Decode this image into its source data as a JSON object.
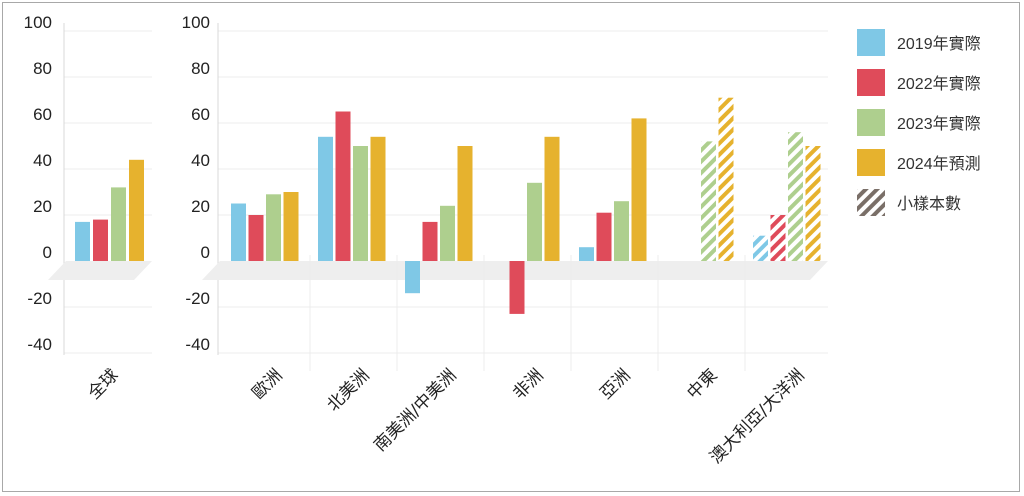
{
  "chart_data": [
    {
      "type": "bar",
      "categories": [
        "全球"
      ],
      "ylim": [
        -40,
        100
      ],
      "yticks": [
        "100",
        "80",
        "60",
        "40",
        "20",
        "0",
        "-20",
        "-40"
      ],
      "series": [
        {
          "name": "2019年實際",
          "values": [
            17
          ]
        },
        {
          "name": "2022年實際",
          "values": [
            18
          ]
        },
        {
          "name": "2023年實際",
          "values": [
            32
          ]
        },
        {
          "name": "2024年預測",
          "values": [
            44
          ]
        }
      ]
    },
    {
      "type": "bar",
      "categories": [
        "歐洲",
        "北美洲",
        "南美洲/中美洲",
        "非洲",
        "亞洲",
        "中東",
        "澳大利亞/大洋洲"
      ],
      "ylim": [
        -40,
        100
      ],
      "yticks": [
        "100",
        "80",
        "60",
        "40",
        "20",
        "0",
        "-20",
        "-40"
      ],
      "series": [
        {
          "name": "2019年實際",
          "values": [
            25,
            54,
            -14,
            null,
            6,
            null,
            11
          ]
        },
        {
          "name": "2022年實際",
          "values": [
            20,
            65,
            17,
            -23,
            21,
            null,
            20
          ]
        },
        {
          "name": "2023年實際",
          "values": [
            29,
            50,
            24,
            34,
            26,
            52,
            56
          ]
        },
        {
          "name": "2024年預測",
          "values": [
            30,
            54,
            50,
            54,
            62,
            71,
            50
          ]
        }
      ],
      "small_sample_categories": [
        "中東",
        "澳大利亞/大洋洲"
      ]
    }
  ],
  "legend": {
    "items": [
      {
        "label": "2019年實際",
        "color": "#7fc8e6",
        "pattern": "solid"
      },
      {
        "label": "2022年實際",
        "color": "#df4b5a",
        "pattern": "solid"
      },
      {
        "label": "2023年實際",
        "color": "#aecf8e",
        "pattern": "solid"
      },
      {
        "label": "2024年預測",
        "color": "#e6b22e",
        "pattern": "solid"
      },
      {
        "label": "小樣本數",
        "color": "#7a6f68",
        "pattern": "hatched"
      }
    ]
  }
}
